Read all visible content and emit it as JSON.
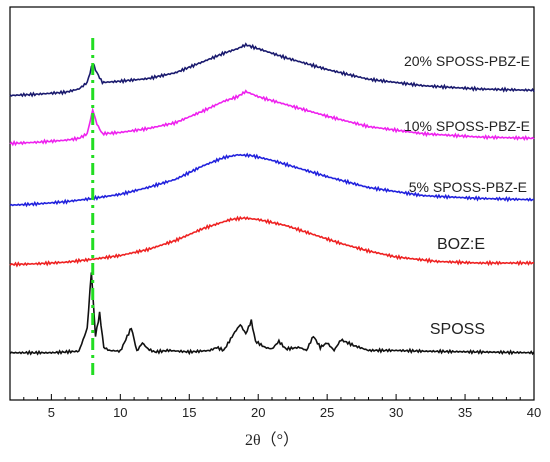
{
  "chart_data": {
    "type": "line",
    "xlabel": "2θ（°）",
    "xlim": [
      2,
      40
    ],
    "x_ticks": [
      5,
      10,
      15,
      20,
      25,
      30,
      35,
      40
    ],
    "grid": false,
    "reference_line": {
      "x": 8.0,
      "color": "#22dd22",
      "style": "dash-dot"
    },
    "series": [
      {
        "name": "20% SPOSS-PBZ-E",
        "color": "#1a1a6e",
        "x": [
          2,
          4,
          6,
          7,
          7.6,
          8.0,
          8.3,
          8.7,
          10,
          11,
          12,
          14,
          16,
          17.5,
          18.5,
          19.1,
          20,
          22,
          25,
          28,
          32,
          36,
          40
        ],
        "y": [
          10,
          12,
          15,
          20,
          30,
          60,
          45,
          30,
          32,
          34,
          36,
          45,
          62,
          75,
          82,
          88,
          82,
          68,
          50,
          35,
          25,
          20,
          18
        ]
      },
      {
        "name": "10% SPOSS-PBZ-E",
        "color": "#ee22ee",
        "x": [
          2,
          4,
          6,
          7,
          7.6,
          8.0,
          8.3,
          8.7,
          10,
          11,
          12,
          14,
          16,
          17.5,
          18.5,
          19.1,
          20,
          22,
          25,
          28,
          32,
          36,
          40
        ],
        "y": [
          10,
          12,
          15,
          18,
          25,
          62,
          40,
          25,
          27,
          30,
          33,
          42,
          60,
          75,
          82,
          90,
          82,
          70,
          52,
          36,
          25,
          20,
          18
        ]
      },
      {
        "name": "5% SPOSS-PBZ-E",
        "color": "#2222dd",
        "x": [
          2,
          4,
          6,
          8,
          10,
          12,
          14,
          16,
          17.5,
          18.5,
          19.5,
          21,
          23,
          25,
          28,
          32,
          36,
          40
        ],
        "y": [
          10,
          12,
          15,
          20,
          26,
          36,
          48,
          68,
          80,
          84,
          83,
          76,
          64,
          52,
          36,
          24,
          20,
          18
        ]
      },
      {
        "name": "BOZ:E",
        "color": "#ee2222",
        "x": [
          2,
          4,
          6,
          8,
          10,
          12,
          14,
          16,
          18,
          19,
          20,
          22,
          24,
          26,
          28,
          30,
          33,
          36,
          40
        ],
        "y": [
          10,
          11,
          13,
          17,
          22,
          30,
          42,
          58,
          70,
          72,
          70,
          62,
          50,
          38,
          28,
          20,
          14,
          12,
          12
        ]
      },
      {
        "name": "SPOSS",
        "color": "#111111",
        "x": [
          2,
          5,
          7,
          7.6,
          7.9,
          8.2,
          8.5,
          8.8,
          9.2,
          10,
          10.8,
          11.2,
          11.6,
          12,
          12.5,
          13.5,
          15,
          16.5,
          17,
          17.5,
          18.3,
          18.7,
          19.1,
          19.5,
          19.8,
          20.5,
          21,
          21.5,
          22,
          23,
          23.5,
          24,
          24.5,
          25,
          25.5,
          26,
          27,
          28,
          30,
          32,
          36,
          40
        ],
        "y": [
          3,
          3,
          5,
          35,
          110,
          25,
          55,
          10,
          6,
          5,
          36,
          5,
          16,
          8,
          4,
          6,
          4,
          6,
          10,
          6,
          30,
          40,
          28,
          45,
          18,
          10,
          8,
          18,
          8,
          10,
          6,
          25,
          10,
          16,
          6,
          20,
          12,
          6,
          6,
          5,
          4,
          3
        ]
      }
    ]
  }
}
